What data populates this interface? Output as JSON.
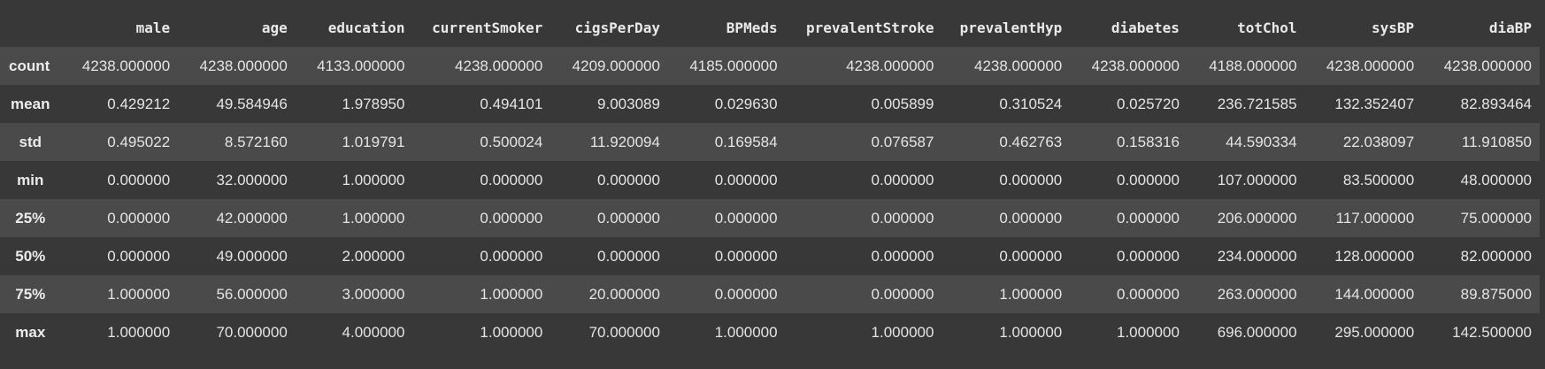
{
  "table": {
    "columns": [
      "male",
      "age",
      "education",
      "currentSmoker",
      "cigsPerDay",
      "BPMeds",
      "prevalentStroke",
      "prevalentHyp",
      "diabetes",
      "totChol",
      "sysBP",
      "diaBP"
    ],
    "rows": [
      {
        "label": "count",
        "values": [
          "4238.000000",
          "4238.000000",
          "4133.000000",
          "4238.000000",
          "4209.000000",
          "4185.000000",
          "4238.000000",
          "4238.000000",
          "4238.000000",
          "4188.000000",
          "4238.000000",
          "4238.000000"
        ]
      },
      {
        "label": "mean",
        "values": [
          "0.429212",
          "49.584946",
          "1.978950",
          "0.494101",
          "9.003089",
          "0.029630",
          "0.005899",
          "0.310524",
          "0.025720",
          "236.721585",
          "132.352407",
          "82.893464"
        ]
      },
      {
        "label": "std",
        "values": [
          "0.495022",
          "8.572160",
          "1.019791",
          "0.500024",
          "11.920094",
          "0.169584",
          "0.076587",
          "0.462763",
          "0.158316",
          "44.590334",
          "22.038097",
          "11.910850"
        ]
      },
      {
        "label": "min",
        "values": [
          "0.000000",
          "32.000000",
          "1.000000",
          "0.000000",
          "0.000000",
          "0.000000",
          "0.000000",
          "0.000000",
          "0.000000",
          "107.000000",
          "83.500000",
          "48.000000"
        ]
      },
      {
        "label": "25%",
        "values": [
          "0.000000",
          "42.000000",
          "1.000000",
          "0.000000",
          "0.000000",
          "0.000000",
          "0.000000",
          "0.000000",
          "0.000000",
          "206.000000",
          "117.000000",
          "75.000000"
        ]
      },
      {
        "label": "50%",
        "values": [
          "0.000000",
          "49.000000",
          "2.000000",
          "0.000000",
          "0.000000",
          "0.000000",
          "0.000000",
          "0.000000",
          "0.000000",
          "234.000000",
          "128.000000",
          "82.000000"
        ]
      },
      {
        "label": "75%",
        "values": [
          "1.000000",
          "56.000000",
          "3.000000",
          "1.000000",
          "20.000000",
          "0.000000",
          "0.000000",
          "1.000000",
          "0.000000",
          "263.000000",
          "144.000000",
          "89.875000"
        ]
      },
      {
        "label": "max",
        "values": [
          "1.000000",
          "70.000000",
          "4.000000",
          "1.000000",
          "70.000000",
          "1.000000",
          "1.000000",
          "1.000000",
          "1.000000",
          "696.000000",
          "295.000000",
          "142.500000"
        ]
      }
    ]
  },
  "colors": {
    "background": "#383838",
    "row_stripe": "#4a4a4a",
    "text": "#e6e6e6"
  }
}
